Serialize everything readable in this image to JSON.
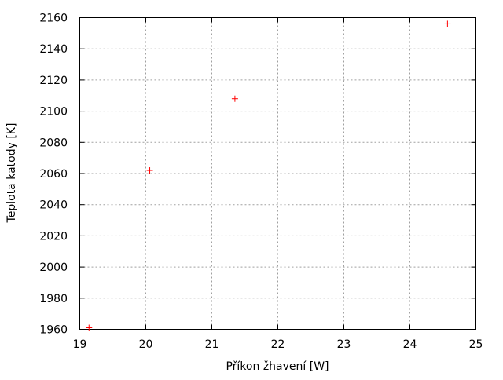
{
  "chart_data": {
    "type": "scatter",
    "title": "",
    "xlabel": "Příkon žhavení [W]",
    "ylabel": "Teplota katody [K]",
    "xlim": [
      19,
      25
    ],
    "ylim": [
      1960,
      2160
    ],
    "xticks": [
      "19",
      "20",
      "21",
      "22",
      "23",
      "24",
      "25"
    ],
    "yticks": [
      "1960",
      "1980",
      "2000",
      "2020",
      "2040",
      "2060",
      "2080",
      "2100",
      "2120",
      "2140",
      "2160"
    ],
    "grid": true,
    "marker": "plus",
    "series": [
      {
        "color": "#ff0000",
        "points": [
          {
            "x": 19.14,
            "y": 1961
          },
          {
            "x": 20.06,
            "y": 2062
          },
          {
            "x": 21.35,
            "y": 2108
          },
          {
            "x": 24.57,
            "y": 2156
          }
        ]
      }
    ]
  }
}
